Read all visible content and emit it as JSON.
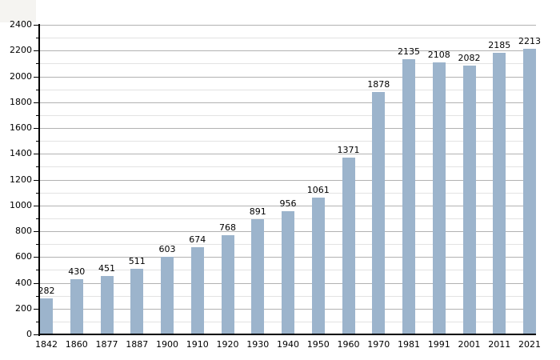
{
  "chart_data": {
    "type": "bar",
    "title": "",
    "xlabel": "",
    "ylabel": "",
    "categories": [
      "1842",
      "1860",
      "1877",
      "1887",
      "1900",
      "1910",
      "1920",
      "1930",
      "1940",
      "1950",
      "1960",
      "1970",
      "1981",
      "1991",
      "2001",
      "2011",
      "2021"
    ],
    "values": [
      282,
      430,
      451,
      511,
      603,
      674,
      768,
      891,
      956,
      1061,
      1371,
      1878,
      2135,
      2108,
      2082,
      2185,
      2213
    ],
    "ylim": [
      0,
      2400
    ],
    "y_major_step": 200,
    "y_minor_step": 100,
    "y_tick_labels": [
      "0",
      "200",
      "400",
      "600",
      "800",
      "1000",
      "1200",
      "1400",
      "1600",
      "1800",
      "2000",
      "2200",
      "2400"
    ],
    "bar_color": "#9cb4cc",
    "axis_color": "#000000",
    "major_grid_color": "#b2b2b2",
    "minor_grid_color": "#e3e3e3",
    "grid": "on",
    "legend_position": "none",
    "value_labels_shown": true
  }
}
